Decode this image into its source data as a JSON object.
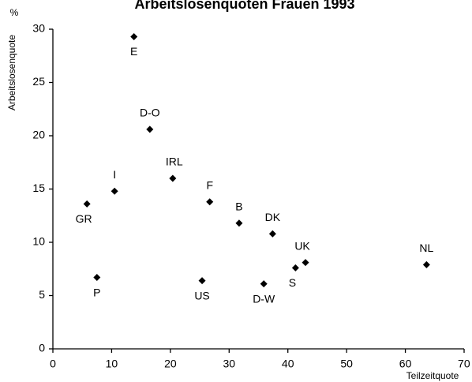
{
  "chart_data": {
    "type": "scatter",
    "title": "Arbeitslosenquoten Frauen 1993",
    "y_label": "Arbeitslosenquote",
    "y_unit": "%",
    "x_label": "Teilzeitquote",
    "categories": [
      "E",
      "D-O",
      "I",
      "GR",
      "IRL",
      "F",
      "B",
      "DK",
      "UK",
      "S",
      "NL",
      "P",
      "US",
      "D-W"
    ],
    "x": [
      13.8,
      16.5,
      10.5,
      5.8,
      20.4,
      26.7,
      31.7,
      37.4,
      43.0,
      41.3,
      63.6,
      7.5,
      25.4,
      35.9
    ],
    "values": [
      29.3,
      20.6,
      14.8,
      13.6,
      16.0,
      13.8,
      11.8,
      10.8,
      8.1,
      7.6,
      7.9,
      6.7,
      6.4,
      6.1
    ],
    "color": "#000000",
    "xlim": [
      0,
      70
    ],
    "xticks": [
      0,
      10,
      20,
      30,
      40,
      50,
      60,
      {
        "value": 70,
        "label": "70 %"
      }
    ],
    "ylim": [
      0,
      30
    ],
    "yticks": [
      0,
      5,
      10,
      15,
      20,
      25,
      30
    ]
  }
}
